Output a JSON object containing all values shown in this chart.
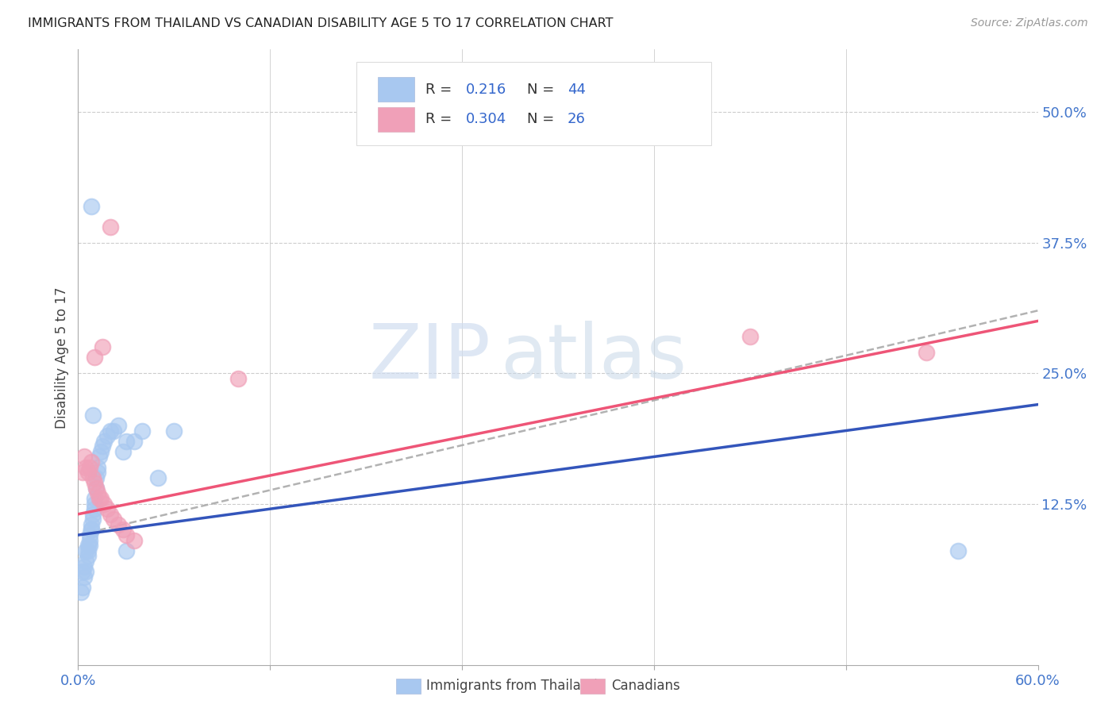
{
  "title": "IMMIGRANTS FROM THAILAND VS CANADIAN DISABILITY AGE 5 TO 17 CORRELATION CHART",
  "source": "Source: ZipAtlas.com",
  "ylabel": "Disability Age 5 to 17",
  "xlim": [
    0.0,
    0.6
  ],
  "ylim": [
    -0.03,
    0.56
  ],
  "grid_color": "#cccccc",
  "background_color": "#ffffff",
  "watermark_zip": "ZIP",
  "watermark_atlas": "atlas",
  "legend_R1": "0.216",
  "legend_N1": "44",
  "legend_R2": "0.304",
  "legend_N2": "26",
  "blue_color": "#a8c8f0",
  "pink_color": "#f0a0b8",
  "trendline_blue": "#3355bb",
  "trendline_pink": "#ee5577",
  "trendline_dashed_color": "#aaaaaa",
  "blue_scatter_x": [
    0.002,
    0.003,
    0.003,
    0.004,
    0.004,
    0.005,
    0.005,
    0.005,
    0.006,
    0.006,
    0.006,
    0.007,
    0.007,
    0.007,
    0.008,
    0.008,
    0.008,
    0.009,
    0.009,
    0.01,
    0.01,
    0.01,
    0.011,
    0.011,
    0.012,
    0.012,
    0.013,
    0.014,
    0.015,
    0.016,
    0.018,
    0.02,
    0.022,
    0.025,
    0.028,
    0.03,
    0.035,
    0.04,
    0.05,
    0.06,
    0.008,
    0.009,
    0.55,
    0.03
  ],
  "blue_scatter_y": [
    0.04,
    0.045,
    0.06,
    0.055,
    0.065,
    0.06,
    0.07,
    0.08,
    0.075,
    0.08,
    0.085,
    0.085,
    0.09,
    0.095,
    0.1,
    0.1,
    0.105,
    0.11,
    0.115,
    0.12,
    0.125,
    0.13,
    0.14,
    0.15,
    0.155,
    0.16,
    0.17,
    0.175,
    0.18,
    0.185,
    0.19,
    0.195,
    0.195,
    0.2,
    0.175,
    0.185,
    0.185,
    0.195,
    0.15,
    0.195,
    0.41,
    0.21,
    0.08,
    0.08
  ],
  "pink_scatter_x": [
    0.003,
    0.004,
    0.005,
    0.006,
    0.007,
    0.008,
    0.009,
    0.01,
    0.011,
    0.012,
    0.013,
    0.014,
    0.016,
    0.018,
    0.02,
    0.022,
    0.025,
    0.028,
    0.03,
    0.035,
    0.01,
    0.015,
    0.02,
    0.1,
    0.42,
    0.53
  ],
  "pink_scatter_y": [
    0.155,
    0.17,
    0.16,
    0.155,
    0.16,
    0.165,
    0.15,
    0.145,
    0.14,
    0.135,
    0.13,
    0.13,
    0.125,
    0.12,
    0.115,
    0.11,
    0.105,
    0.1,
    0.095,
    0.09,
    0.265,
    0.275,
    0.39,
    0.245,
    0.285,
    0.27
  ]
}
